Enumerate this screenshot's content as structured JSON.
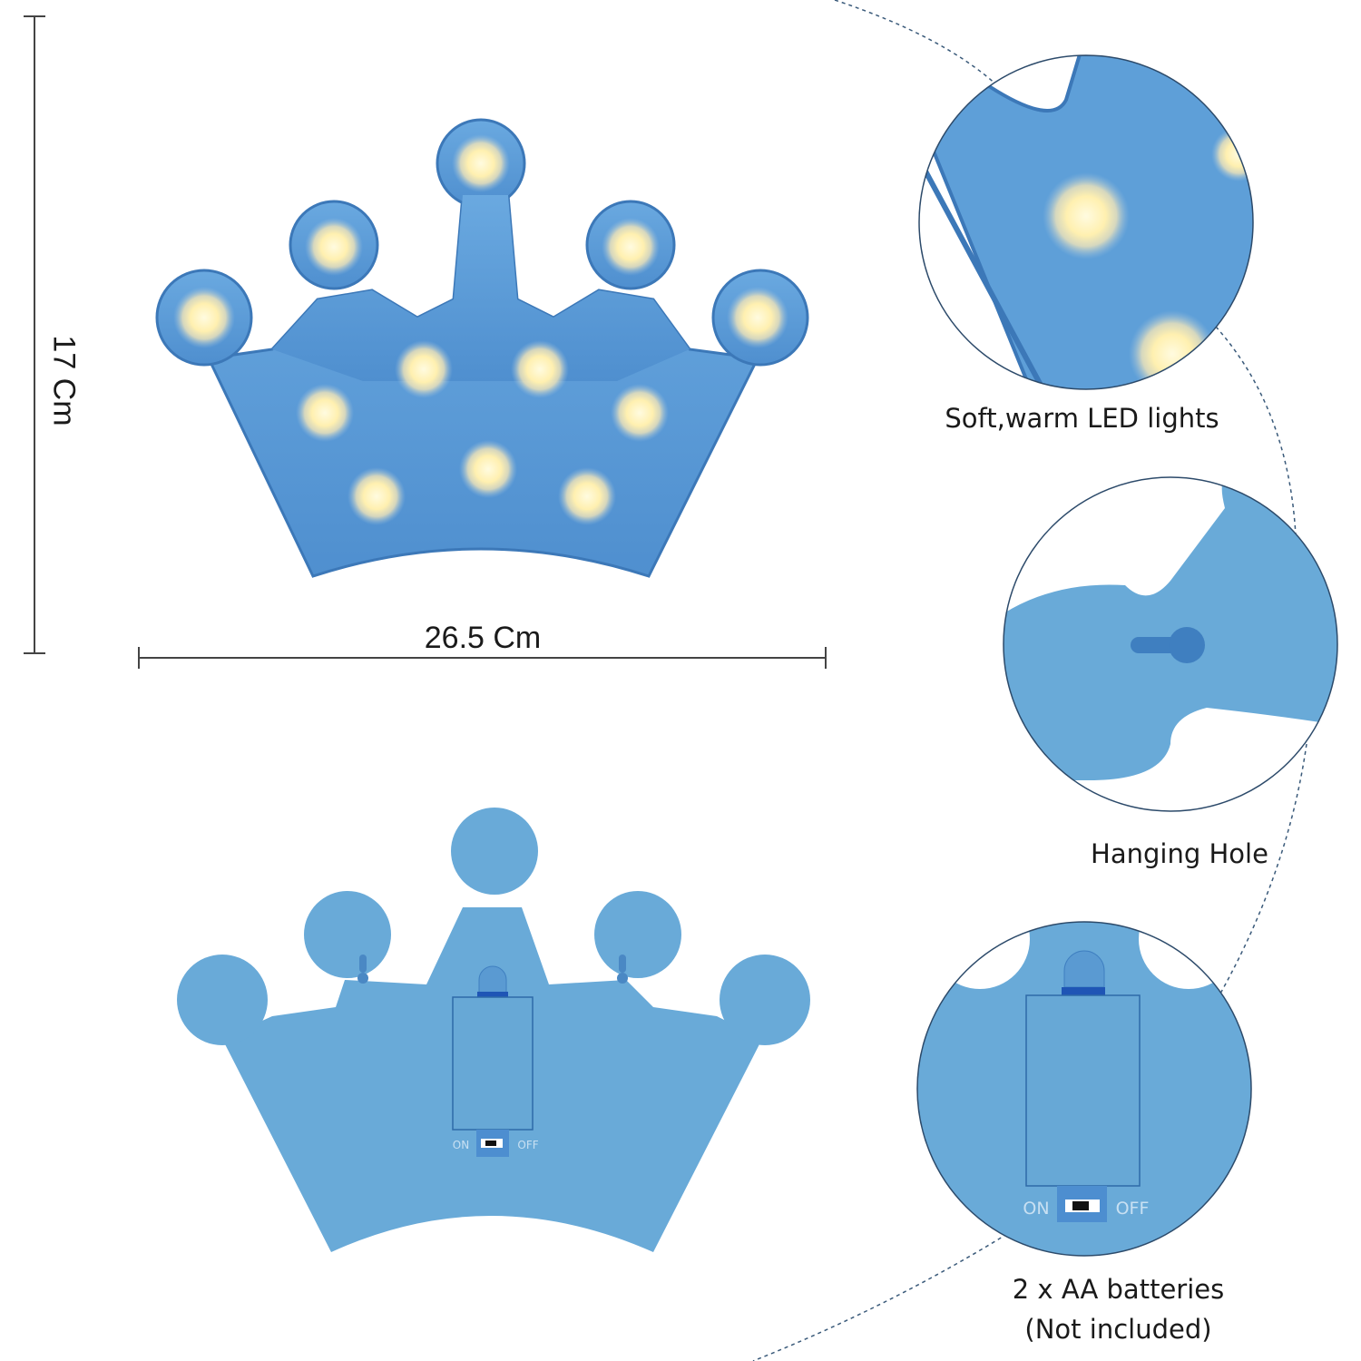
{
  "dimensions": {
    "height": "17 Cm",
    "width": "26.5 Cm"
  },
  "features": [
    {
      "caption": "Soft,warm LED lights"
    },
    {
      "caption": "Hanging Hole"
    },
    {
      "caption_line1": "2 x AA batteries",
      "caption_line2": "(Not included)"
    }
  ],
  "switch": {
    "on_label": "ON",
    "off_label": "OFF"
  },
  "colors": {
    "crown_front": "#5e9fd8",
    "crown_back": "#69aad8",
    "led": "#fff6c8",
    "line": "#3a4a5a"
  }
}
